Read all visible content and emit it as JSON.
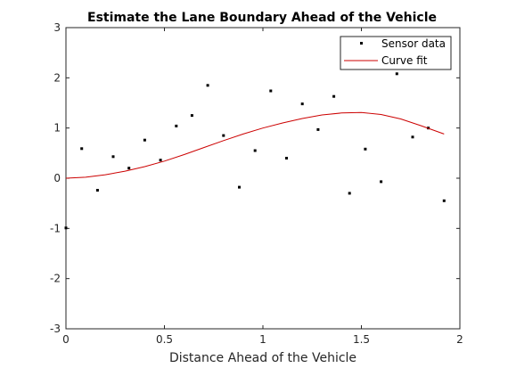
{
  "chart_data": {
    "type": "scatter",
    "title": "Estimate the Lane Boundary Ahead of the Vehicle",
    "xlabel": "Distance Ahead of the Vehicle",
    "ylabel": "",
    "xlim": [
      0,
      2
    ],
    "ylim": [
      -3,
      3
    ],
    "xticks": [
      0,
      0.5,
      1,
      1.5,
      2
    ],
    "xtick_labels": [
      "0",
      "0.5",
      "1",
      "1.5",
      "2"
    ],
    "yticks": [
      -3,
      -2,
      -1,
      0,
      1,
      2,
      3
    ],
    "ytick_labels": [
      "-3",
      "-2",
      "-1",
      "0",
      "1",
      "2",
      "3"
    ],
    "grid": false,
    "legend_position": "top-right",
    "series": [
      {
        "name": "Sensor data",
        "mark": "point",
        "color": "#000000",
        "x": [
          0.0,
          0.08,
          0.16,
          0.24,
          0.32,
          0.4,
          0.48,
          0.56,
          0.64,
          0.72,
          0.8,
          0.88,
          0.96,
          1.04,
          1.12,
          1.2,
          1.28,
          1.36,
          1.44,
          1.52,
          1.6,
          1.68,
          1.76,
          1.84,
          1.92
        ],
        "y": [
          -0.99,
          0.59,
          -0.24,
          0.43,
          0.2,
          0.76,
          0.36,
          1.04,
          1.25,
          1.85,
          0.85,
          -0.18,
          0.55,
          1.74,
          0.4,
          1.48,
          0.97,
          1.63,
          -0.3,
          0.58,
          -0.07,
          2.08,
          0.82,
          1.0,
          -0.45
        ]
      },
      {
        "name": "Curve fit",
        "mark": "line",
        "color": "#cc0000",
        "x": [
          0.0,
          0.1,
          0.2,
          0.3,
          0.4,
          0.5,
          0.6,
          0.7,
          0.8,
          0.9,
          1.0,
          1.1,
          1.2,
          1.3,
          1.4,
          1.5,
          1.6,
          1.7,
          1.8,
          1.92
        ],
        "y": [
          0.0,
          0.02,
          0.07,
          0.14,
          0.23,
          0.34,
          0.47,
          0.61,
          0.75,
          0.88,
          1.0,
          1.1,
          1.19,
          1.26,
          1.3,
          1.31,
          1.27,
          1.18,
          1.05,
          0.88
        ]
      }
    ]
  }
}
